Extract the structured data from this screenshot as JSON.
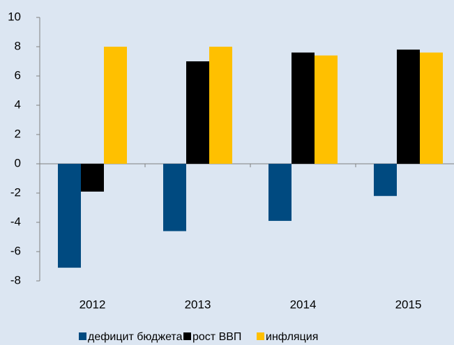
{
  "chart_data": {
    "type": "bar",
    "categories": [
      "2012",
      "2013",
      "2014",
      "2015"
    ],
    "series": [
      {
        "name": "дефицит бюджета",
        "color": "#004a80",
        "values": [
          -7.1,
          -4.6,
          -3.9,
          -2.2
        ]
      },
      {
        "name": "рост ВВП",
        "color": "#000000",
        "values": [
          -1.9,
          7.0,
          7.6,
          7.8
        ]
      },
      {
        "name": "инфляция",
        "color": "#ffc000",
        "values": [
          8.0,
          8.0,
          7.4,
          7.6
        ]
      }
    ],
    "ylim": [
      -8,
      10
    ],
    "yticks": [
      -8,
      -6,
      -4,
      -2,
      0,
      2,
      4,
      6,
      8,
      10
    ],
    "grid": false,
    "legend": "bottom"
  }
}
